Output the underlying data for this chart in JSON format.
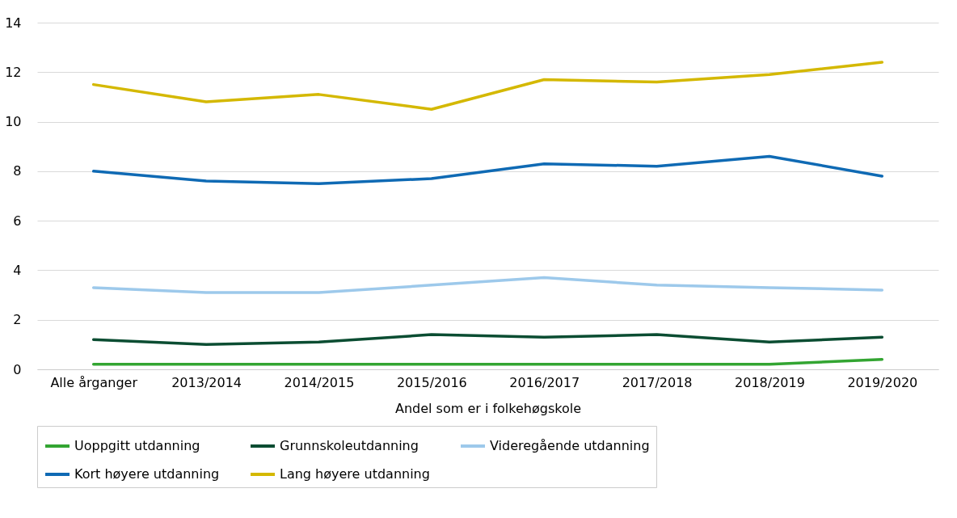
{
  "chart_data": {
    "type": "line",
    "xlabel": "Andel som er i folkehøgskole",
    "categories": [
      "Alle årganger",
      "2013/2014",
      "2014/2015",
      "2015/2016",
      "2016/2017",
      "2017/2018",
      "2018/2019",
      "2019/2020"
    ],
    "series": [
      {
        "name": "Uoppgitt utdanning",
        "color": "#33a532",
        "values": [
          0.2,
          0.2,
          0.2,
          0.2,
          0.2,
          0.2,
          0.2,
          0.4
        ]
      },
      {
        "name": "Grunnskoleutdanning",
        "color": "#0b4d32",
        "values": [
          1.2,
          1.0,
          1.1,
          1.4,
          1.3,
          1.4,
          1.1,
          1.3
        ]
      },
      {
        "name": "Videregående utdanning",
        "color": "#9dc9eb",
        "values": [
          3.3,
          3.1,
          3.1,
          3.4,
          3.7,
          3.4,
          3.3,
          3.2
        ]
      },
      {
        "name": "Kort høyere utdanning",
        "color": "#0f6ab4",
        "values": [
          8.0,
          7.6,
          7.5,
          7.7,
          8.3,
          8.2,
          8.6,
          7.8
        ]
      },
      {
        "name": "Lang høyere utdanning",
        "color": "#d4b800",
        "values": [
          11.5,
          10.8,
          11.1,
          10.5,
          11.7,
          11.6,
          11.9,
          12.4
        ]
      }
    ],
    "ylim": [
      0,
      14
    ],
    "yticks": [
      0,
      2,
      4,
      6,
      8,
      10,
      12,
      14
    ],
    "grid": "y",
    "legend": "bottom",
    "marker": "none",
    "line_style": "solid"
  }
}
